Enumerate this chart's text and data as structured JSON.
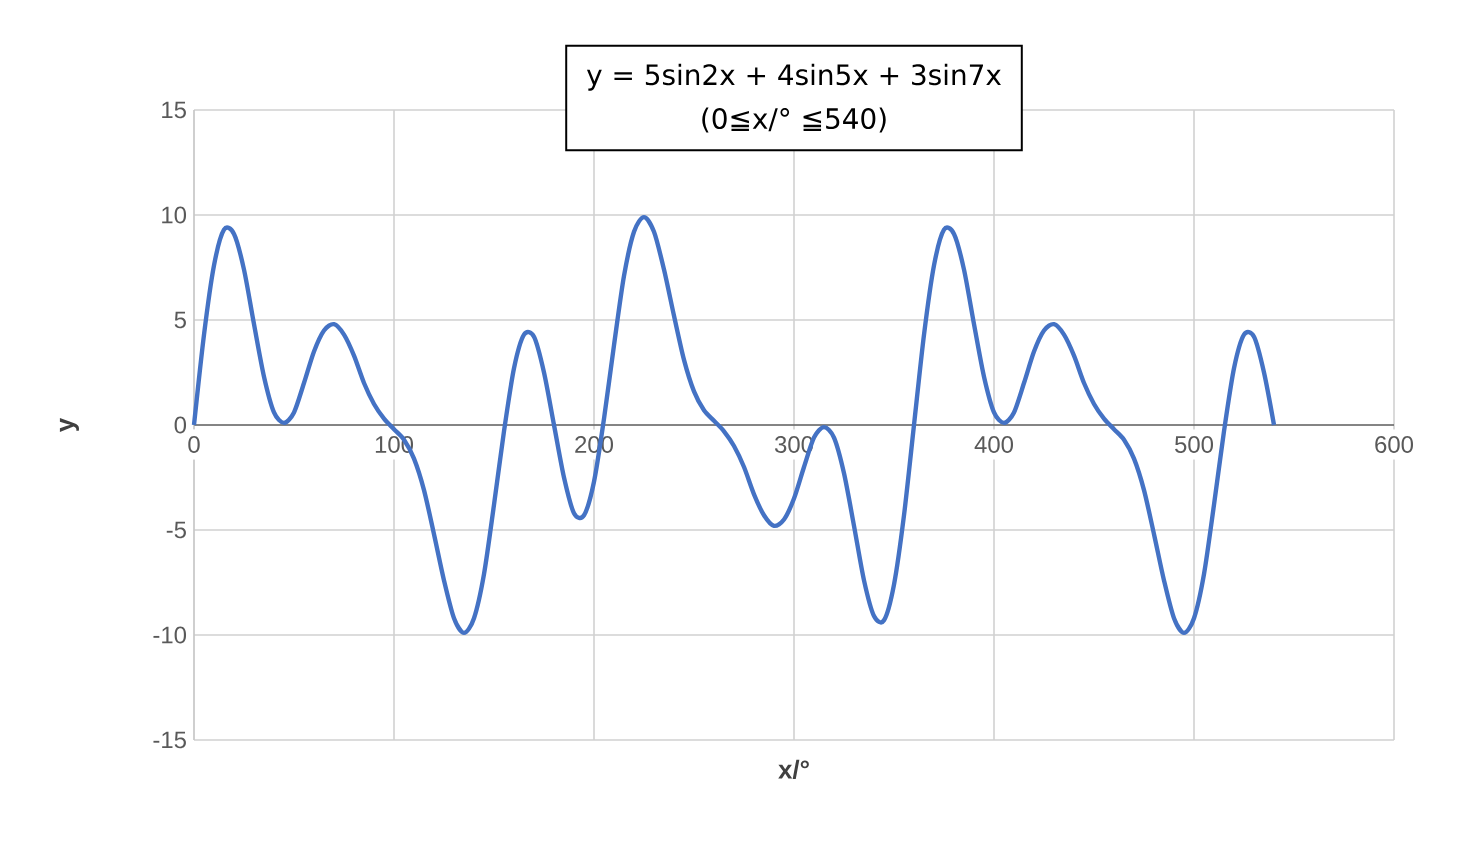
{
  "chart_data": {
    "type": "line",
    "title": "y = 5sin2x + 4sin5x + 3sin7x",
    "subtitle": "(0≦x/° ≦540)",
    "xlabel": "x/°",
    "ylabel": "y",
    "x": [
      0,
      5,
      10,
      15,
      20,
      25,
      30,
      35,
      40,
      45,
      50,
      55,
      60,
      65,
      70,
      75,
      80,
      85,
      90,
      95,
      100,
      105,
      110,
      115,
      120,
      125,
      130,
      135,
      140,
      145,
      150,
      155,
      160,
      165,
      170,
      175,
      180,
      185,
      190,
      195,
      200,
      205,
      210,
      215,
      220,
      225,
      230,
      235,
      240,
      245,
      250,
      255,
      260,
      265,
      270,
      275,
      280,
      285,
      290,
      295,
      300,
      305,
      310,
      315,
      320,
      325,
      330,
      335,
      340,
      345,
      350,
      355,
      360,
      365,
      370,
      375,
      380,
      385,
      390,
      395,
      400,
      405,
      410,
      415,
      420,
      425,
      430,
      435,
      440,
      445,
      450,
      455,
      460,
      465,
      470,
      475,
      480,
      485,
      490,
      495,
      500,
      505,
      510,
      515,
      520,
      525,
      530,
      535,
      540
    ],
    "values": [
      0,
      4.3,
      7.6,
      9.3,
      9.1,
      7.4,
      4.8,
      2.3,
      0.6,
      0.1,
      0.6,
      2,
      3.5,
      4.5,
      4.8,
      4.3,
      3.3,
      2,
      1,
      0.3,
      -0.2,
      -0.7,
      -1.6,
      -3.1,
      -5.2,
      -7.4,
      -9.2,
      -9.9,
      -9.2,
      -7.1,
      -3.8,
      -0.3,
      2.7,
      4.3,
      4.2,
      2.5,
      0,
      -2.5,
      -4.2,
      -4.3,
      -2.7,
      0.3,
      3.8,
      7.1,
      9.2,
      9.9,
      9.2,
      7.4,
      5.2,
      3.1,
      1.6,
      0.7,
      0.2,
      -0.3,
      -1,
      -2,
      -3.3,
      -4.3,
      -4.8,
      -4.5,
      -3.5,
      -2,
      -0.6,
      -0.1,
      -0.6,
      -2.3,
      -4.8,
      -7.4,
      -9.1,
      -9.3,
      -7.6,
      -4.3,
      0,
      4.3,
      7.6,
      9.3,
      9.1,
      7.4,
      4.8,
      2.3,
      0.6,
      0.1,
      0.6,
      2,
      3.5,
      4.5,
      4.8,
      4.3,
      3.3,
      2,
      1,
      0.3,
      -0.2,
      -0.7,
      -1.6,
      -3.1,
      -5.2,
      -7.4,
      -9.2,
      -9.9,
      -9.2,
      -7.1,
      -3.8,
      -0.3,
      2.7,
      4.3,
      4.2,
      2.5,
      0
    ],
    "color": "#4472c4",
    "xlim": [
      0,
      600
    ],
    "ylim": [
      -15,
      15
    ],
    "xticks": [
      0,
      100,
      200,
      300,
      400,
      500,
      600
    ],
    "yticks": [
      -15,
      -10,
      -5,
      0,
      5,
      10,
      15
    ],
    "grid": true
  }
}
